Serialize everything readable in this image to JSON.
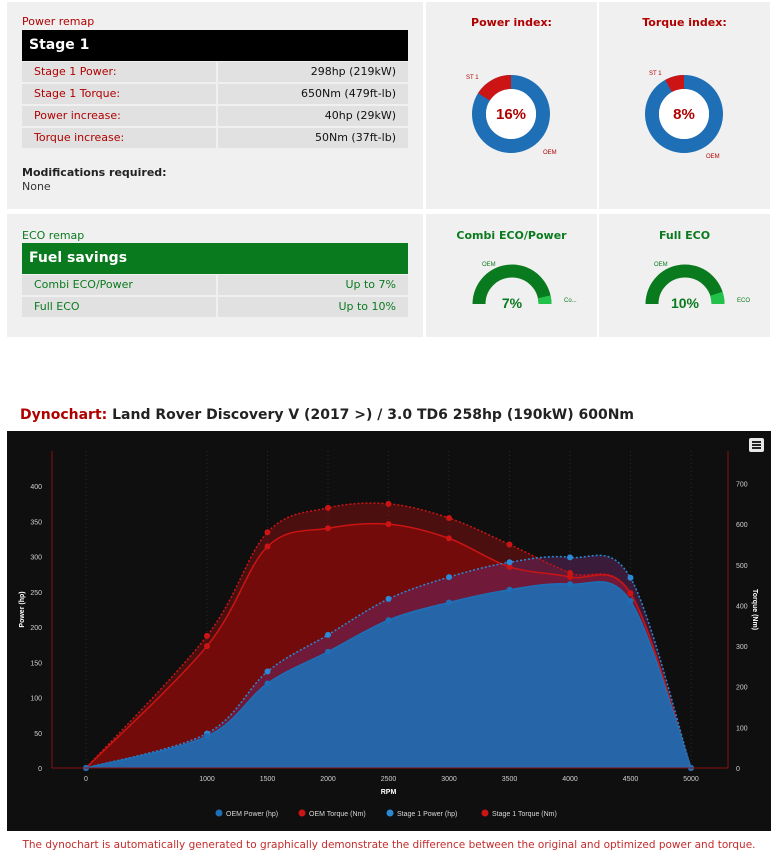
{
  "remap": {
    "section_label": "Power remap",
    "stage_title": "Stage 1",
    "rows": [
      {
        "label": "Stage 1 Power:",
        "value": "298hp (219kW)"
      },
      {
        "label": "Stage 1 Torque:",
        "value": "650Nm (479ft-lb)"
      },
      {
        "label": "Power increase:",
        "value": "40hp (29kW)"
      },
      {
        "label": "Torque increase:",
        "value": "50Nm (37ft-lb)"
      }
    ],
    "modifications_title": "Modifications required:",
    "modifications_value": "None"
  },
  "power_index": {
    "title": "Power index:",
    "value_label": "16%",
    "percent": 16,
    "stage_label": "ST 1",
    "oem_label": "OEM"
  },
  "torque_index": {
    "title": "Torque index:",
    "value_label": "8%",
    "percent": 8,
    "stage_label": "ST 1",
    "oem_label": "OEM"
  },
  "eco": {
    "section_label": "ECO remap",
    "bar_title": "Fuel savings",
    "rows": [
      {
        "label": "Combi ECO/Power",
        "value": "Up to 7%"
      },
      {
        "label": "Full ECO",
        "value": "Up to 10%"
      }
    ]
  },
  "combi_gauge": {
    "title": "Combi ECO/Power",
    "value_label": "7%",
    "percent": 7,
    "oem_label": "OEM",
    "mode_label": "Co..."
  },
  "fulleco_gauge": {
    "title": "Full ECO",
    "value_label": "10%",
    "percent": 10,
    "oem_label": "OEM",
    "mode_label": "ECO"
  },
  "dyno": {
    "heading_prefix": "Dynochart:",
    "heading_text": "Land Rover Discovery V (2017 >) / 3.0 TD6 258hp (190kW) 600Nm",
    "footnote": "The dynochart is automatically generated to graphically demonstrate the difference between the original and optimized power and torque.",
    "menu_icon": "hamburger-menu-icon"
  },
  "colors": {
    "red": "#b00000",
    "green": "#0a7a1e",
    "blue": "#1e6fb5",
    "torque_red": "#cc1414"
  },
  "chart_data": {
    "type": "area",
    "xlabel": "RPM",
    "ylabel_left": "Power (hp)",
    "ylabel_right": "Torque (Nm)",
    "x": [
      0,
      1000,
      1500,
      2000,
      2500,
      3000,
      3500,
      4000,
      4500,
      5000
    ],
    "xlim": [
      0,
      5000
    ],
    "x_ticks": [
      0,
      1000,
      1500,
      2000,
      2500,
      3000,
      3500,
      4000,
      4500,
      5000
    ],
    "ylim_left": [
      0,
      450
    ],
    "y_ticks_left": [
      0,
      50,
      100,
      150,
      200,
      250,
      300,
      350,
      400
    ],
    "ylim_right": [
      0,
      780
    ],
    "y_ticks_right": [
      0,
      100,
      200,
      300,
      400,
      500,
      600,
      700
    ],
    "grid": true,
    "legend_position": "bottom",
    "series": [
      {
        "name": "OEM Power (hp)",
        "axis": "left",
        "color": "#1e6fb5",
        "values": [
          0,
          45,
          120,
          165,
          210,
          235,
          253,
          261,
          237,
          0
        ]
      },
      {
        "name": "OEM Torque (Nm)",
        "axis": "right",
        "color": "#cc1414",
        "values": [
          0,
          300,
          545,
          590,
          600,
          565,
          495,
          470,
          430,
          0
        ]
      },
      {
        "name": "Stage 1 Power (hp)",
        "axis": "left",
        "color": "#2a8ad6",
        "values": [
          0,
          49,
          137,
          189,
          240,
          271,
          292,
          299,
          270,
          0
        ]
      },
      {
        "name": "Stage 1 Torque (Nm)",
        "axis": "right",
        "color": "#cc1414",
        "values": [
          0,
          325,
          580,
          640,
          650,
          615,
          550,
          480,
          430,
          0
        ]
      }
    ]
  }
}
